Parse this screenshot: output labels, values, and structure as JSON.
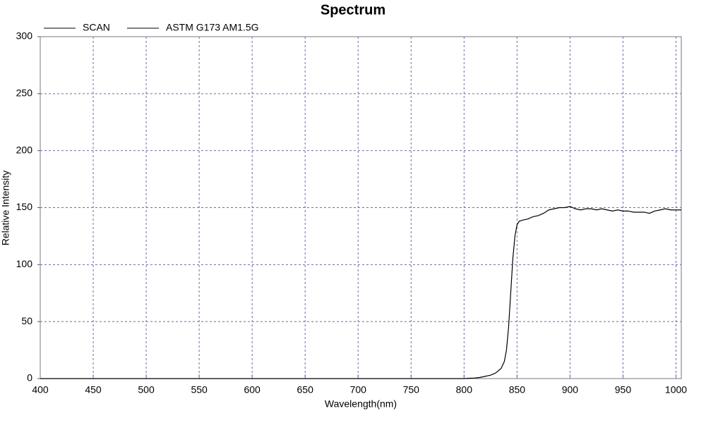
{
  "chart_data": {
    "type": "line",
    "title": "Spectrum",
    "xlabel": "Wavelength(nm)",
    "ylabel": "Relative Intensity",
    "x": [
      400,
      410,
      420,
      430,
      440,
      450,
      460,
      470,
      480,
      490,
      500,
      510,
      520,
      530,
      540,
      550,
      560,
      570,
      580,
      590,
      600,
      610,
      620,
      630,
      640,
      650,
      660,
      670,
      680,
      690,
      700,
      710,
      720,
      730,
      740,
      750,
      760,
      770,
      780,
      790,
      800,
      805,
      810,
      815,
      820,
      825,
      830,
      835,
      838,
      840,
      842,
      844,
      846,
      848,
      850,
      852,
      855,
      860,
      865,
      870,
      875,
      880,
      885,
      890,
      895,
      900,
      905,
      910,
      915,
      920,
      925,
      930,
      935,
      940,
      945,
      950,
      955,
      960,
      965,
      970,
      975,
      980,
      985,
      990,
      995,
      1000,
      1005
    ],
    "series": [
      {
        "name": "SCAN",
        "color": "#000000",
        "values": [
          0,
          0,
          0,
          0,
          0,
          0,
          0,
          0,
          0,
          0,
          0,
          0,
          0,
          0,
          0,
          0,
          0,
          0,
          0,
          0,
          0,
          0,
          0,
          0,
          0,
          0,
          0,
          0,
          0,
          0,
          0,
          0,
          0,
          0,
          0,
          0,
          0,
          0,
          0,
          0,
          0,
          0.3,
          0.5,
          1,
          2,
          3,
          5,
          9,
          15,
          25,
          45,
          75,
          105,
          125,
          135,
          138,
          139,
          140,
          142,
          143,
          145,
          148,
          149,
          150,
          150,
          151,
          149,
          148,
          149,
          149,
          148,
          149,
          148,
          147,
          148,
          147,
          147,
          146,
          146,
          146,
          145,
          147,
          148,
          149,
          148,
          148,
          148
        ]
      },
      {
        "name": "ASTM G173 AM1.5G",
        "color": "#000000",
        "values": [
          null,
          null,
          null,
          null,
          null,
          null,
          null,
          null,
          null,
          null,
          null,
          null,
          null,
          null,
          null,
          null,
          null,
          null,
          null,
          null,
          null,
          null,
          null,
          null,
          null,
          null,
          null,
          null,
          null,
          null,
          null,
          null,
          null,
          null,
          null,
          null,
          null,
          null,
          null,
          null,
          null,
          null,
          null,
          null,
          null,
          null,
          null,
          null,
          null,
          null,
          null,
          null,
          null,
          null,
          null,
          null,
          null,
          null,
          null,
          null,
          null,
          null,
          null,
          null,
          null,
          null,
          null,
          null,
          null,
          null,
          null,
          null,
          null,
          null,
          null,
          null,
          null,
          null,
          null,
          null,
          null,
          null,
          null,
          null,
          null,
          null,
          null
        ]
      }
    ],
    "xlim": [
      400,
      1005
    ],
    "ylim": [
      0,
      300
    ],
    "xticks": [
      400,
      450,
      500,
      550,
      600,
      650,
      700,
      750,
      800,
      850,
      900,
      950,
      1000
    ],
    "yticks": [
      0,
      50,
      100,
      150,
      200,
      250,
      300
    ],
    "grid": true
  }
}
